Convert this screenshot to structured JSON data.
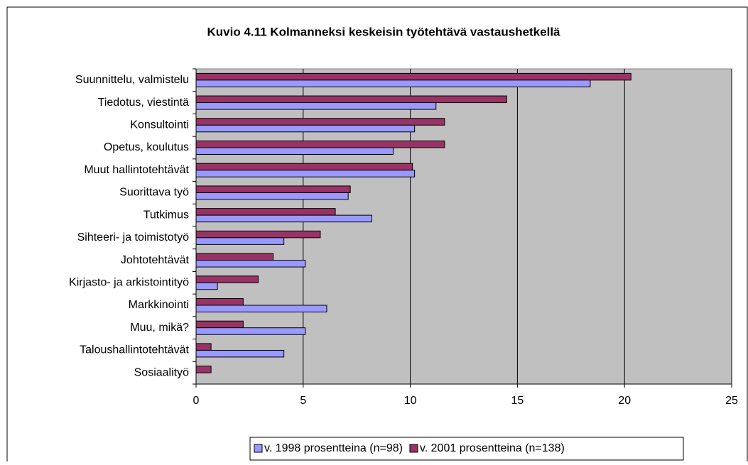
{
  "chart_data": {
    "type": "barh",
    "title": "Kuvio 4.11 Kolmanneksi keskeisin työtehtävä vastaushetkellä",
    "categories": [
      "Suunnittelu, valmistelu",
      "Tiedotus, viestintä",
      "Konsultointi",
      "Opetus, koulutus",
      "Muut hallintotehtävät",
      "Suorittava työ",
      "Tutkimus",
      "Sihteeri- ja toimistotyö",
      "Johtotehtävät",
      "Kirjasto- ja arkistointityö",
      "Markkinointi",
      "Muu, mikä?",
      "Taloushallintotehtävät",
      "Sosiaalityö"
    ],
    "series": [
      {
        "name": "v. 1998 prosentteina (n=98)",
        "color": "#9999ff",
        "values": [
          18.4,
          11.2,
          10.2,
          9.2,
          10.2,
          7.1,
          8.2,
          4.1,
          5.1,
          1.0,
          6.1,
          5.1,
          4.1,
          0
        ]
      },
      {
        "name": "v. 2001 prosentteina (n=138)",
        "color": "#993366",
        "values": [
          20.3,
          14.5,
          11.6,
          11.6,
          10.1,
          7.2,
          6.5,
          5.8,
          3.6,
          2.9,
          2.2,
          2.2,
          0.7,
          0.7
        ]
      }
    ],
    "xlim": [
      0,
      25
    ],
    "xticks": [
      0,
      5,
      10,
      15,
      20,
      25
    ],
    "grid": true
  }
}
